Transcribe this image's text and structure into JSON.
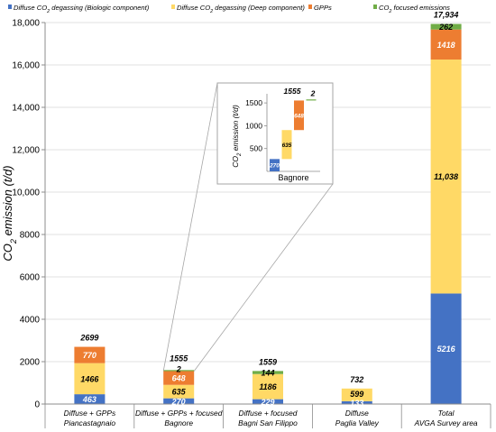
{
  "colors": {
    "biologic": "#4472C4",
    "deep": "#FFD966",
    "gpps": "#ED7D31",
    "focused": "#70AD47",
    "axis": "#8c8c8c",
    "grid": "#d9d9d9"
  },
  "legend": [
    {
      "key": "biologic",
      "label": "Diffuse CO₂ degassing (Biologic component)"
    },
    {
      "key": "deep",
      "label": "Diffuse CO₂ degassing (Deep component)"
    },
    {
      "key": "gpps",
      "label": "GPPs"
    },
    {
      "key": "focused",
      "label": "CO₂ focused emissions"
    }
  ],
  "chart_data": [
    {
      "type": "bar",
      "stacked": true,
      "ylabel": "CO₂ emission (t/d)",
      "ylim": [
        0,
        18000
      ],
      "yticks": [
        "0",
        "2000",
        "4000",
        "6000",
        "8000",
        "10,000",
        "12,000",
        "14,000",
        "16,000",
        "18,000"
      ],
      "ytick_values": [
        0,
        2000,
        4000,
        6000,
        8000,
        10000,
        12000,
        14000,
        16000,
        18000
      ],
      "categories": [
        [
          "Diffuse + GPPs",
          "Piancastagnaio"
        ],
        [
          "Diffuse + GPPs + focused",
          "Bagnore"
        ],
        [
          "Diffuse + focused",
          "Bagni San Filippo"
        ],
        [
          "Diffuse",
          "Paglia Valley"
        ],
        [
          "Total",
          "AVGA Survey area"
        ]
      ],
      "series": [
        {
          "name": "Diffuse CO₂ degassing (Biologic component)",
          "key": "biologic",
          "values": [
            463,
            270,
            229,
            133,
            5216
          ],
          "labels": [
            "463",
            "270",
            "229",
            "133",
            "5216"
          ]
        },
        {
          "name": "Diffuse CO₂ degassing (Deep component)",
          "key": "deep",
          "values": [
            1466,
            635,
            1186,
            599,
            11038
          ],
          "labels": [
            "1466",
            "635",
            "1186",
            "599",
            "11,038"
          ]
        },
        {
          "name": "GPPs",
          "key": "gpps",
          "values": [
            770,
            648,
            0,
            0,
            1418
          ],
          "labels": [
            "770",
            "648",
            "",
            "",
            "1418"
          ]
        },
        {
          "name": "CO₂ focused emissions",
          "key": "focused",
          "values": [
            0,
            2,
            144,
            0,
            262
          ],
          "labels": [
            "",
            "2",
            "144",
            "",
            "262"
          ]
        }
      ],
      "totals": [
        "2699",
        "1555",
        "1559",
        "732",
        "17,934"
      ],
      "total_values": [
        2699,
        1555,
        1559,
        732,
        17934
      ]
    },
    {
      "type": "bar",
      "inset": true,
      "waterfall": true,
      "xlabel": "Bagnore",
      "ylabel": "CO₂ emission (t/d)",
      "ylim": [
        0,
        1700
      ],
      "yticks": [
        "500",
        "1000",
        "1500"
      ],
      "ytick_values": [
        500,
        1000,
        1500
      ],
      "steps": [
        {
          "key": "biologic",
          "value": 270,
          "label": "270"
        },
        {
          "key": "deep",
          "value": 635,
          "label": "635"
        },
        {
          "key": "gpps",
          "value": 648,
          "label": "648"
        },
        {
          "key": "focused",
          "value": 2,
          "label": "2"
        }
      ],
      "total": "1555"
    }
  ]
}
